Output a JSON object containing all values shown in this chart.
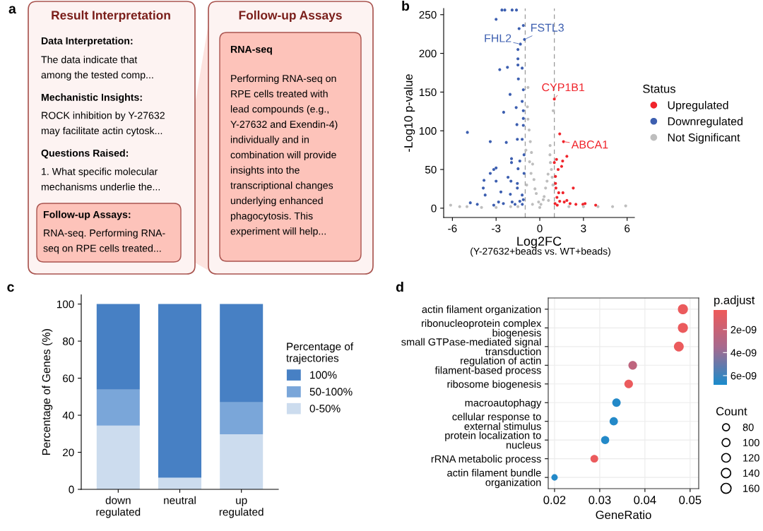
{
  "chart_data": [
    {
      "type": "other",
      "title": "Result Interpretation",
      "annotations": [
        "a",
        "Data Interpretation:",
        "The data indicate that\namong the tested comp...",
        "Mechanistic Insights:",
        "ROCK inhibition by Y-27632\nmay facilitate actin cytosk...",
        "Questions Raised:",
        "1. What specific molecular\nmechanisms underlie the...",
        "Follow-up Assays:",
        "RNA-seq. Performing RNA-\nseq on RPE cells treated..."
      ]
    },
    {
      "type": "other",
      "title": "Follow-up Assays",
      "annotations": [
        "RNA-seq",
        "Performing RNA-seq on\nRPE cells treated with\nlead compounds (e.g.,\nY-27632 and Exendin-4)\nindividually and in\ncombination will provide\ninsights into the\ntranscriptional changes\nunderlying enhanced\nphagocytosis. This\nexperiment will help..."
      ]
    },
    {
      "type": "scatter",
      "xlabel": "Log2FC",
      "ylabel": "-Log10 p-value",
      "legend_title": "Status",
      "legend": "right",
      "grid": false,
      "marker": "circle",
      "xlim": [
        -6.6,
        6.5
      ],
      "xticks": [
        -6,
        -3,
        0,
        3,
        6
      ],
      "ylim": [
        -12,
        258
      ],
      "yticks": [
        0,
        50,
        100,
        150,
        200,
        250
      ],
      "ref_lines": [
        {
          "axis": "x",
          "value": -1,
          "label": null,
          "color": "#999999",
          "line_style": "dashed"
        },
        {
          "axis": "x",
          "value": 1,
          "label": null,
          "color": "#999999",
          "line_style": "dashed"
        }
      ],
      "series": [
        {
          "name": "Upregulated",
          "color": "#f0242b",
          "x": [
            1.0,
            1.37,
            1.63,
            1.86,
            1.15,
            1.0,
            1.57,
            1.5,
            1.26,
            1.08,
            1.08,
            1.11,
            2.3,
            1.59,
            1.18,
            1.37,
            1.68,
            2.08,
            2.48,
            2.96,
            3.11,
            3.84,
            1.05,
            1.86,
            1.3,
            1.2
          ],
          "values": [
            141,
            96,
            86,
            67,
            63,
            59,
            61,
            54,
            50,
            41,
            32,
            26,
            26,
            20,
            14,
            9,
            8,
            6,
            5,
            5,
            6,
            4,
            6,
            10,
            20,
            4
          ]
        },
        {
          "name": "Downregulated",
          "color": "#3d5fb0",
          "x": [
            -2.6,
            -2.4,
            -1.9,
            -1.6,
            -3.0,
            -1.42,
            -1.13,
            -1.05,
            -1.33,
            -1.5,
            -1.5,
            -1.5,
            -1.21,
            -2.75,
            -2.22,
            -1.47,
            -1.13,
            -2.04,
            -1.21,
            -2.48,
            -1.62,
            -1.13,
            -1.13,
            -1.57,
            -1.13,
            -4.97,
            -1.54,
            -1.21,
            -3.4,
            -2.3,
            -1.08,
            -1.94,
            -1.37,
            -1.94,
            -3.0,
            -3.16,
            -1.49,
            -3.4,
            -1.08,
            -2.18,
            -3.83,
            -3.0,
            -1.98,
            -1.54,
            -3.88,
            -1.54,
            -3.75,
            -2.67,
            -2.02,
            -1.21,
            -4.77,
            -4.29,
            -2.83,
            -2.5,
            -1.9,
            -1.37,
            -1.13,
            -3.16,
            -1.7,
            -1.2
          ],
          "values": [
            256,
            256,
            256,
            256,
            244,
            232,
            236,
            218,
            212,
            205,
            193,
            185,
            181,
            179,
            182,
            167,
            153,
            147,
            138,
            124,
            130,
            126,
            116,
            108,
            107,
            98,
            89,
            89,
            86,
            85,
            69,
            64,
            61,
            59,
            52,
            50,
            51,
            45,
            45,
            40,
            36,
            35,
            35,
            32,
            26,
            26,
            17,
            21,
            18,
            17,
            7,
            5,
            8,
            6,
            8,
            9,
            11,
            4,
            5,
            5
          ]
        },
        {
          "name": "Not Significant",
          "color": "#bebebe",
          "x": [
            -0.81,
            -0.85,
            -0.81,
            -0.73,
            -0.65,
            -0.57,
            -0.49,
            -0.4,
            -0.24,
            -0.08,
            0.08,
            0.24,
            0.4,
            0.57,
            0.73,
            0.7,
            0.71,
            0.92,
            -6.12,
            -5.5,
            -5.0,
            -4.0,
            -3.0,
            -2.0,
            -1.5,
            2.0,
            3.0,
            4.0,
            5.0,
            5.9,
            -0.9,
            -0.7,
            0.5,
            0.3,
            -0.33,
            0.8,
            -0.6,
            0.6,
            -0.5,
            0.0,
            0.9,
            -0.95,
            0.85
          ],
          "values": [
            156,
            131,
            115,
            101,
            86,
            72,
            57,
            37,
            19,
            8,
            5,
            11,
            26,
            44,
            59,
            69,
            81,
            126,
            4,
            2,
            2,
            1,
            1,
            2,
            2,
            2,
            2,
            2,
            2,
            3,
            30,
            60,
            35,
            15,
            25,
            50,
            45,
            10,
            5,
            1,
            30,
            75,
            40
          ]
        }
      ],
      "annotations": [
        "b",
        "(Y-27632+beads vs. WT+beads)",
        {
          "text": "FHL2",
          "x": -1.33,
          "y": 212
        },
        {
          "text": "FSTL3",
          "x": -1.05,
          "y": 218
        },
        {
          "text": "CYP1B1",
          "x": 1.0,
          "y": 141
        },
        {
          "text": "ABCA1",
          "x": 1.63,
          "y": 86
        }
      ]
    },
    {
      "type": "bar",
      "stacked": true,
      "ylabel": "Percentage of Genes (%)",
      "legend_title": "Percentage of\ntrajectories",
      "legend": "right",
      "categories": [
        "down\nregulated",
        "neutral",
        "up\nregulated"
      ],
      "ylim": [
        0,
        105
      ],
      "yticks": [
        0,
        20,
        40,
        60,
        80,
        100
      ],
      "series": [
        {
          "name": "0-50%",
          "color": "#ccdcee",
          "values": [
            34.4,
            6.3,
            29.7
          ]
        },
        {
          "name": "50-100%",
          "color": "#7aa6d9",
          "values": [
            19.4,
            0,
            17.3
          ]
        },
        {
          "name": "100%",
          "color": "#4780c4",
          "values": [
            46.2,
            93.7,
            53.0
          ]
        }
      ],
      "annotations": [
        "c"
      ]
    },
    {
      "type": "bubble",
      "orientation": "horizontal",
      "xlabel": "GeneRatio",
      "clabel": "p.adjust",
      "legend_title": "Count",
      "grid": true,
      "categories": [
        "actin filament organization",
        "ribonucleoprotein complex\nbiogenesis",
        "small GTPase-mediated signal\ntransduction",
        "regulation of actin\nfilament-based process",
        "ribosome biogenesis",
        "macroautophagy",
        "cellular response to\nexternal stimulus",
        "protein localization to\nnucleus",
        "rRNA metabolic process",
        "actin filament bundle\norganization"
      ],
      "values": [
        0.0484,
        0.0484,
        0.0475,
        0.0373,
        0.0364,
        0.0337,
        0.0331,
        0.0312,
        0.0288,
        0.02
      ],
      "sizes": [
        160,
        160,
        155,
        120,
        118,
        112,
        110,
        105,
        95,
        65
      ],
      "size_legend": [
        80,
        100,
        120,
        140,
        160
      ],
      "cvalues": [
        5e-10,
        5e-10,
        5e-10,
        2.5e-09,
        5e-10,
        6.6e-09,
        6.6e-09,
        6.6e-09,
        5e-10,
        6.6e-09
      ],
      "clim": [
        3e-10,
        6.8e-09
      ],
      "cticks": [
        {
          "value": 2e-09,
          "label": "2e-09"
        },
        {
          "value": 4e-09,
          "label": "4e-09"
        },
        {
          "value": 6e-09,
          "label": "6e-09"
        }
      ],
      "xlim": [
        0.0186,
        0.0519
      ],
      "xticks": [
        0.02,
        0.03,
        0.04,
        0.05
      ],
      "annotations": [
        "d"
      ]
    }
  ]
}
